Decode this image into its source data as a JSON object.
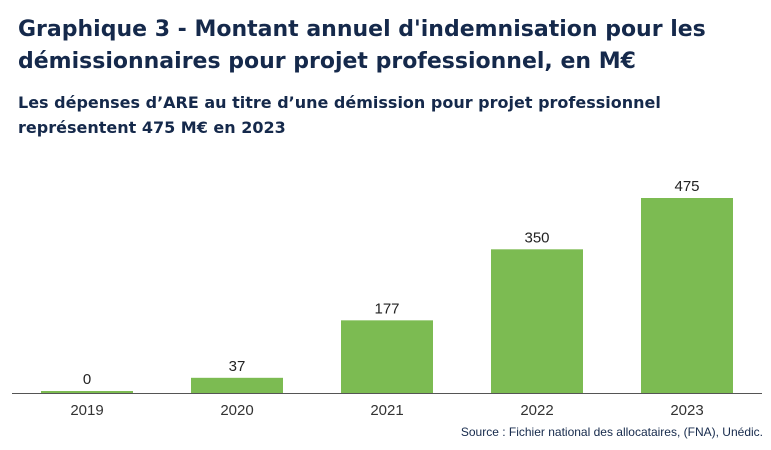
{
  "title": "Graphique 3 - Montant annuel d'indemnisation pour les démissionnaires pour projet professionnel, en M€",
  "subtitle": "Les dépenses d’ARE au titre d’une démission pour projet professionnel représentent 475 M€ en 2023",
  "source": "Source : Fichier national des allocataires, (FNA), Unédic.",
  "colors": {
    "bar": "#7cbb52",
    "axis": "#555555",
    "text": "#15294b"
  },
  "chart_data": {
    "type": "bar",
    "categories": [
      "2019",
      "2020",
      "2021",
      "2022",
      "2023"
    ],
    "values": [
      0,
      37,
      177,
      350,
      475
    ],
    "ylim": [
      0,
      475
    ],
    "xlabel": "",
    "ylabel": "",
    "grid": false,
    "legend": "none"
  }
}
